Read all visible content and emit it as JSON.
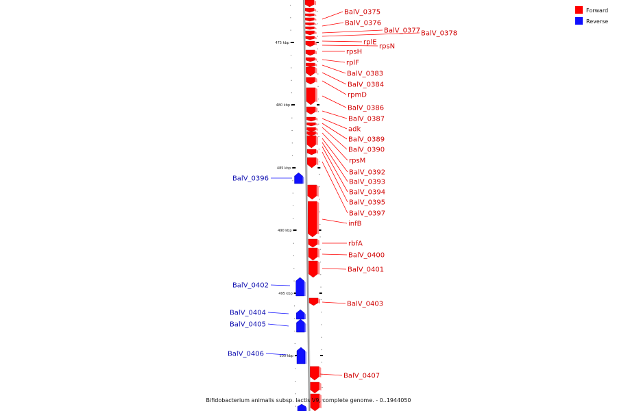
{
  "legend": [
    {
      "label": "Forward",
      "color": "#ff0000"
    },
    {
      "label": "Reverse",
      "color": "#1010ff"
    }
  ],
  "caption": "Bifidobacterium animalis subsp. lactis V9, complete genome. - 0..1944050",
  "axis_ticks": [
    "475 kbp",
    "480 kbp",
    "485 kbp",
    "490 kbp",
    "495 kbp",
    "500 kbp"
  ],
  "colors": {
    "forward": "#ff0000",
    "reverse": "#1010ff",
    "axis": "#999999"
  },
  "genes_forward": [
    "BalV_0375",
    "BalV_0376",
    "BalV_0377",
    "BalV_0378",
    "rplE",
    "rpsN",
    "rpsH",
    "rplF",
    "BalV_0383",
    "BalV_0384",
    "rpmD",
    "BalV_0386",
    "BalV_0387",
    "adk",
    "BalV_0389",
    "BalV_0390",
    "rpsM",
    "BalV_0392",
    "BalV_0393",
    "BalV_0394",
    "BalV_0395",
    "BalV_0397",
    "infB",
    "rbfA",
    "BalV_0400",
    "BalV_0401",
    "BalV_0403",
    "BalV_0407"
  ],
  "genes_reverse": [
    "BalV_0396",
    "BalV_0402",
    "BalV_0404",
    "BalV_0405",
    "BalV_0406"
  ]
}
